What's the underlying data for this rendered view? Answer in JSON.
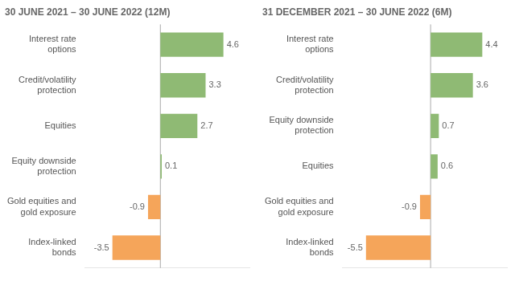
{
  "chart_data": [
    {
      "type": "bar",
      "orientation": "horizontal",
      "title": "30 JUNE 2021 – 30 JUNE 2022 (12M)",
      "categories": [
        "Interest rate\noptions",
        "Credit/volatility\nprotection",
        "Equities",
        "Equity downside\nprotection",
        "Gold equities and\ngold exposure",
        "Index-linked\nbonds"
      ],
      "values": [
        4.6,
        3.3,
        2.7,
        0.1,
        -0.9,
        -3.5
      ],
      "colors": [
        "#8fba74",
        "#8fba74",
        "#8fba74",
        "#8fba74",
        "#f5a55a",
        "#f5a55a"
      ],
      "xlim": [
        -5.5,
        6.5
      ],
      "data_labels": true,
      "tick_labels": "y",
      "grid": false
    },
    {
      "type": "bar",
      "orientation": "horizontal",
      "title": "31 DECEMBER 2021 – 30 JUNE 2022 (6M)",
      "categories": [
        "Interest rate\noptions",
        "Credit/volatility\nprotection",
        "Equity downside\nprotection",
        "Equities",
        "Gold equities and\ngold exposure",
        "Index-linked\nbonds"
      ],
      "values": [
        4.4,
        3.6,
        0.7,
        0.6,
        -0.9,
        -5.5
      ],
      "colors": [
        "#8fba74",
        "#8fba74",
        "#8fba74",
        "#8fba74",
        "#f5a55a",
        "#f5a55a"
      ],
      "xlim": [
        -7.5,
        6.5
      ],
      "data_labels": true,
      "tick_labels": "y",
      "grid": false
    }
  ]
}
